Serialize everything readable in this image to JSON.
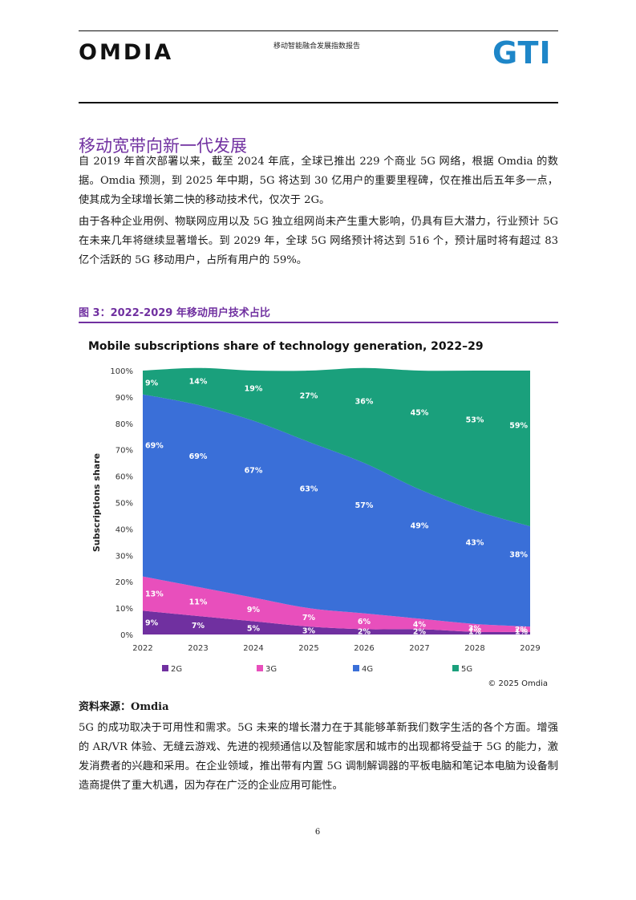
{
  "header": {
    "left_logo": "OMDIA",
    "title": "移动智能融合发展指数报告",
    "right_logo": "GTI"
  },
  "section": {
    "title": "移动宽带向新一代发展",
    "paragraphs": [
      "自 2019 年首次部署以来，截至 2024 年底，全球已推出 229 个商业 5G 网络，根据 Omdia 的数据。Omdia 预测，到 2025 年中期，5G 将达到 30 亿用户的重要里程碑，仅在推出后五年多一点，使其成为全球增长第二快的移动技术代，仅次于 2G。",
      "由于各种企业用例、物联网应用以及 5G 独立组网尚未产生重大影响，仍具有巨大潜力，行业预计 5G 在未来几年将继续显著增长。到 2029 年，全球 5G 网络预计将达到 516 个，预计届时将有超过 83 亿个活跃的 5G 移动用户，占所有用户的 59%。"
    ]
  },
  "figure": {
    "caption": "图 3：2022-2029 年移动用户技术占比",
    "source": "资料来源：Omdia"
  },
  "chart_data": {
    "type": "area",
    "title": "Mobile subscriptions share of technology generation, 2022–29",
    "ylabel": "Subscriptions share",
    "xlabel": "",
    "x": [
      "2022",
      "2023",
      "2024",
      "2025",
      "2026",
      "2027",
      "2028",
      "2029"
    ],
    "ylim": [
      0,
      100
    ],
    "yticks": [
      "0%",
      "10%",
      "20%",
      "30%",
      "40%",
      "50%",
      "60%",
      "70%",
      "80%",
      "90%",
      "100%"
    ],
    "stacked": true,
    "series": [
      {
        "name": "2G",
        "color": "#7030a0",
        "values": [
          9,
          7,
          5,
          3,
          2,
          2,
          1,
          1
        ],
        "labels": [
          "9%",
          "7%",
          "5%",
          "3%",
          "2%",
          "2%",
          "1%",
          "1%"
        ]
      },
      {
        "name": "3G",
        "color": "#e84fbc",
        "values": [
          13,
          11,
          9,
          7,
          6,
          4,
          3,
          2
        ],
        "labels": [
          "13%",
          "11%",
          "9%",
          "7%",
          "6%",
          "4%",
          "3%",
          "2%"
        ]
      },
      {
        "name": "4G",
        "color": "#3a6fd8",
        "values": [
          69,
          69,
          67,
          63,
          57,
          49,
          43,
          38
        ],
        "labels": [
          "69%",
          "69%",
          "67%",
          "63%",
          "57%",
          "49%",
          "43%",
          "38%"
        ]
      },
      {
        "name": "5G",
        "color": "#1aa07c",
        "values": [
          9,
          14,
          19,
          27,
          36,
          45,
          53,
          59
        ],
        "labels": [
          "9%",
          "14%",
          "19%",
          "27%",
          "36%",
          "45%",
          "53%",
          "59%"
        ]
      }
    ],
    "legend_position": "bottom",
    "copyright": "© 2025 Omdia"
  },
  "closing": {
    "paragraph": "5G 的成功取决于可用性和需求。5G 未来的增长潜力在于其能够革新我们数字生活的各个方面。增强的 AR/VR 体验、无缝云游戏、先进的视频通信以及智能家居和城市的出现都将受益于 5G 的能力，激发消费者的兴趣和采用。在企业领域，推出带有内置 5G 调制解调器的平板电脑和笔记本电脑为设备制造商提供了重大机遇，因为存在广泛的企业应用可能性。"
  },
  "footer": {
    "page_number": "6"
  }
}
